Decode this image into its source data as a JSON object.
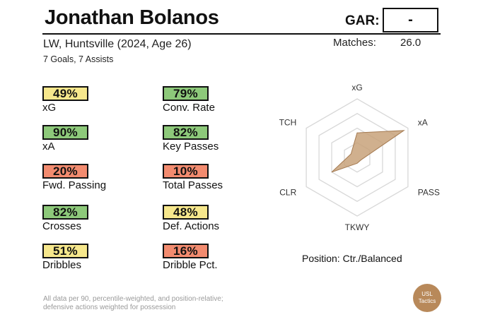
{
  "player": {
    "name": "Jonathan Bolanos",
    "subtitle": "LW, Huntsville (2024, Age 26)",
    "goals_assists": "7 Goals,  7 Assists",
    "gar_label": "GAR:",
    "gar_value": "-",
    "matches_label": "Matches:",
    "matches_value": "26.0"
  },
  "colors": {
    "yellow": "#f6e78c",
    "green": "#8dc97a",
    "red": "#f28b6f",
    "radar_fill": "#c8a27a",
    "radar_stroke": "#a57b52",
    "logo_bg": "#b8895a"
  },
  "stats": [
    {
      "value": "49%",
      "label": "xG",
      "color": "yellow"
    },
    {
      "value": "79%",
      "label": "Conv. Rate",
      "color": "green"
    },
    {
      "value": "90%",
      "label": "xA",
      "color": "green"
    },
    {
      "value": "82%",
      "label": "Key Passes",
      "color": "green"
    },
    {
      "value": "20%",
      "label": "Fwd. Passing",
      "color": "red"
    },
    {
      "value": "10%",
      "label": "Total Passes",
      "color": "red"
    },
    {
      "value": "82%",
      "label": "Crosses",
      "color": "green"
    },
    {
      "value": "48%",
      "label": "Def. Actions",
      "color": "yellow"
    },
    {
      "value": "51%",
      "label": "Dribbles",
      "color": "yellow"
    },
    {
      "value": "16%",
      "label": "Dribble Pct.",
      "color": "red"
    }
  ],
  "radar": {
    "axes": [
      "xG",
      "xA",
      "PASS",
      "TKWY",
      "CLR",
      "TCH"
    ],
    "values": [
      0.42,
      0.92,
      0.08,
      0.1,
      0.5,
      0.12
    ]
  },
  "position_text": "Position: Ctr./Balanced",
  "footnote": {
    "line1": "All data per 90, percentile-weighted, and position-relative;",
    "line2": "defensive actions weighted for possession"
  },
  "logo": {
    "line1": "USL",
    "line2": "Tactics"
  }
}
